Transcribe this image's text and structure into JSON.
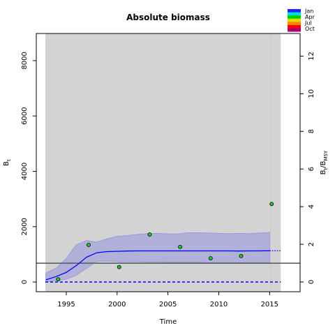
{
  "chart_data": {
    "type": "line",
    "title": "Absolute biomass",
    "xlabel": "Time",
    "ylabel": {
      "main": "B",
      "sub": "t"
    },
    "y2label": {
      "main": "B",
      "sub": "t",
      "mid": "/B",
      "sub2": "MSY"
    },
    "xlim": [
      1992.05,
      2018
    ],
    "xticks": [
      1995,
      2000,
      2005,
      2010,
      2015
    ],
    "ylim": [
      -350,
      8980
    ],
    "yticks": [
      0,
      2000,
      4000,
      6000,
      8000
    ],
    "y2lim": [
      -0.52,
      13.2
    ],
    "y2ticks": [
      0,
      2,
      4,
      6,
      8,
      10,
      12
    ],
    "shade": [
      1992.94,
      2016.1
    ],
    "shade_color": "#d3d3d3",
    "xline": 2015.1,
    "x": [
      1993,
      1994,
      1995,
      1996,
      1997,
      1998,
      1999,
      2000,
      2001,
      2002,
      2003,
      2004,
      2005,
      2006,
      2007,
      2008,
      2009,
      2010,
      2011,
      2012,
      2013,
      2014,
      2015
    ],
    "series": [
      {
        "color": "#0000ff",
        "values": [
          80,
          200,
          350,
          600,
          900,
          1060,
          1100,
          1110,
          1120,
          1125,
          1125,
          1125,
          1125,
          1125,
          1125,
          1125,
          1125,
          1125,
          1125,
          1120,
          1125,
          1125,
          1130
        ]
      }
    ],
    "ci_upper": [
      330,
      500,
      850,
      1350,
      1500,
      1440,
      1560,
      1650,
      1680,
      1720,
      1750,
      1760,
      1740,
      1740,
      1780,
      1780,
      1770,
      1760,
      1750,
      1760,
      1750,
      1770,
      1790
    ],
    "ci_lower": [
      0,
      50,
      100,
      250,
      500,
      750,
      760,
      740,
      730,
      730,
      720,
      720,
      710,
      710,
      710,
      710,
      700,
      700,
      700,
      700,
      700,
      700,
      700
    ],
    "ci_color": "#9999dd",
    "forecast": {
      "x": [
        2015,
        2016.2
      ],
      "values": [
        1130,
        1130
      ]
    },
    "observations": {
      "x": [
        1994.2,
        1997.2,
        2000.2,
        2003.2,
        2006.2,
        2009.2,
        2012.2,
        2015.2
      ],
      "values": [
        100,
        1340,
        540,
        1720,
        1270,
        860,
        940,
        2820
      ],
      "color": "#22cc22"
    },
    "bmsy": 680,
    "zero_line": 0,
    "legend": {
      "labels": [
        "Jan",
        "Apr",
        "Jul",
        "Oct"
      ],
      "colors": [
        "#2222ff",
        "#00dddd",
        "#00cc00",
        "#dddd00",
        "#ff8800",
        "#ff0000",
        "#aa0077"
      ]
    }
  }
}
